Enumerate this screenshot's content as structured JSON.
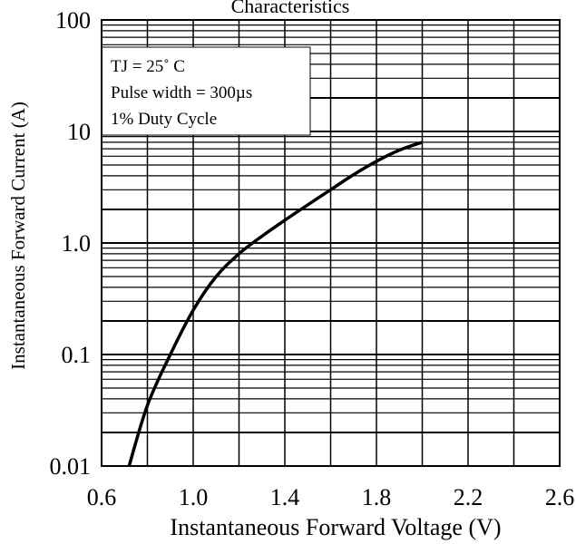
{
  "chart_data": {
    "type": "line",
    "title": "Characteristics",
    "xlabel": "Instantaneous Forward Voltage (V)",
    "ylabel": "Instantaneous Forward Current (A)",
    "xlim": [
      0.6,
      2.6
    ],
    "ylim": [
      0.01,
      100
    ],
    "y_scale": "log",
    "grid": true,
    "x_ticks": [
      "0.6",
      "1.0",
      "1.4",
      "1.8",
      "2.2",
      "2.6"
    ],
    "y_ticks": [
      "0.01",
      "0.1",
      "1.0",
      "10",
      "100"
    ],
    "annotation_lines": [
      "TJ = 25˚ C",
      "Pulse width = 300µs",
      "1% Duty Cycle"
    ],
    "series": [
      {
        "x": [
          0.72,
          0.8,
          0.9,
          1.0,
          1.1,
          1.2,
          1.3,
          1.4,
          1.5,
          1.6,
          1.7,
          1.8,
          1.9,
          2.0
        ],
        "y": [
          0.01,
          0.035,
          0.1,
          0.25,
          0.5,
          0.8,
          1.15,
          1.6,
          2.2,
          3.0,
          4.1,
          5.4,
          6.8,
          8.0
        ]
      }
    ]
  }
}
